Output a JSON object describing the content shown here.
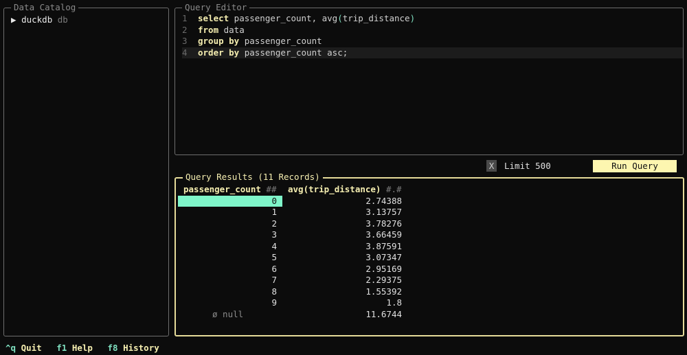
{
  "catalog": {
    "title": "Data Catalog",
    "items": [
      {
        "arrow": "▶",
        "name": "duckdb",
        "type": "db"
      }
    ]
  },
  "editor": {
    "title": "Query Editor",
    "lines": [
      {
        "num": "1",
        "parts": [
          {
            "t": "select",
            "c": "kw"
          },
          {
            "t": " passenger_count, avg",
            "c": ""
          },
          {
            "t": "(",
            "c": "par"
          },
          {
            "t": "trip_distance",
            "c": ""
          },
          {
            "t": ")",
            "c": "par"
          }
        ]
      },
      {
        "num": "2",
        "parts": [
          {
            "t": "from",
            "c": "kw"
          },
          {
            "t": " data",
            "c": ""
          }
        ]
      },
      {
        "num": "3",
        "parts": [
          {
            "t": "group by",
            "c": "kw"
          },
          {
            "t": " passenger_count",
            "c": ""
          }
        ]
      },
      {
        "num": "4",
        "parts": [
          {
            "t": "order by",
            "c": "kw"
          },
          {
            "t": " passenger_count asc;",
            "c": ""
          }
        ]
      }
    ]
  },
  "controls": {
    "limit_checkbox": "X",
    "limit_label": "Limit 500",
    "run_label": "Run Query"
  },
  "results": {
    "title": "Query Results (11 Records)",
    "columns": [
      {
        "name": "passenger_count",
        "type": "##"
      },
      {
        "name": "avg(trip_distance)",
        "type": "#.#"
      }
    ],
    "rows": [
      [
        "0",
        "2.74388"
      ],
      [
        "1",
        "3.13757"
      ],
      [
        "2",
        "3.78276"
      ],
      [
        "3",
        "3.66459"
      ],
      [
        "4",
        "3.87591"
      ],
      [
        "5",
        "3.07347"
      ],
      [
        "6",
        "2.95169"
      ],
      [
        "7",
        "2.29375"
      ],
      [
        "8",
        "1.55392"
      ],
      [
        "9",
        "1.8"
      ],
      [
        "ø null",
        "11.6744"
      ]
    ]
  },
  "footer": [
    {
      "key": "^q",
      "label": "Quit"
    },
    {
      "key": "f1",
      "label": "Help"
    },
    {
      "key": "f8",
      "label": "History"
    }
  ]
}
